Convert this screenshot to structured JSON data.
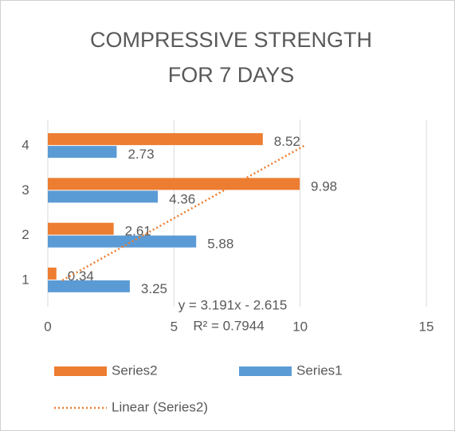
{
  "chart_data": {
    "type": "hbar",
    "title": [
      "COMPRESSIVE STRENGTH",
      "FOR 7 DAYS"
    ],
    "categories": [
      "1",
      "2",
      "3",
      "4"
    ],
    "series": [
      {
        "name": "Series1",
        "color": "#5b9bd5",
        "values": [
          3.25,
          5.88,
          4.36,
          2.73
        ]
      },
      {
        "name": "Series2",
        "color": "#ed7d31",
        "values": [
          0.34,
          2.61,
          9.98,
          8.52
        ]
      }
    ],
    "trendline": {
      "name": "Linear (Series2)",
      "color": "#ed7d31",
      "equation": "y = 3.191x - 2.615",
      "r_squared": "R² = 0.7944",
      "slope": 3.191,
      "intercept": -2.615
    },
    "xlim": [
      0,
      15
    ],
    "xticks": [
      0,
      5,
      10,
      15
    ],
    "grid": true
  }
}
